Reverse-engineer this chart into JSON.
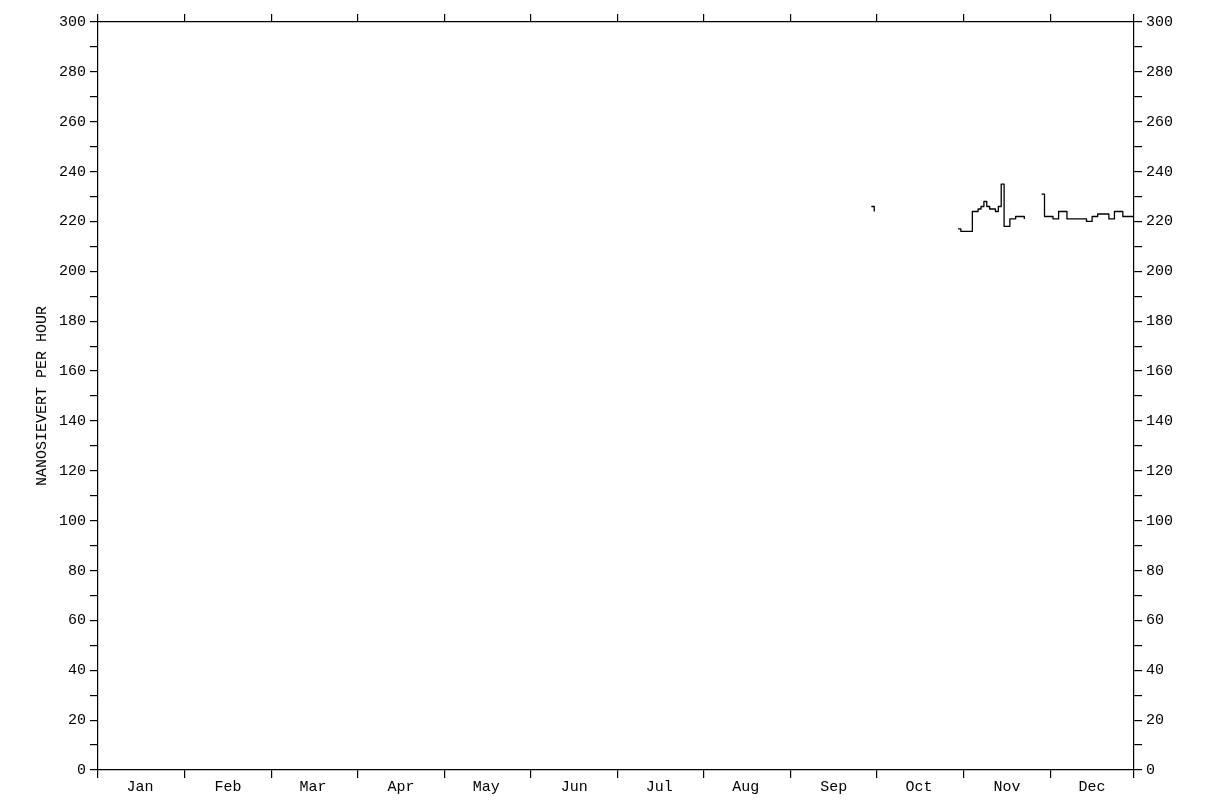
{
  "chart_data": {
    "type": "step",
    "ylabel": "NANOSIEVERT PER HOUR",
    "color": "#000000",
    "x": [
      "--09-29",
      "--09-30",
      "--10-15",
      "--10-30",
      "--10-31",
      "--11-04",
      "--11-06",
      "--11-07",
      "--11-08",
      "--11-09",
      "--11-10",
      "--11-12",
      "--11-13",
      "--11-14",
      "--11-15",
      "--11-17",
      "--11-19",
      "--11-22",
      "--11-25",
      "--11-28",
      "--11-29",
      "--12-02",
      "--12-04",
      "--12-07",
      "--12-10",
      "--12-14",
      "--12-16",
      "--12-18",
      "--12-22",
      "--12-24",
      "--12-27",
      "--12-31"
    ],
    "values": [
      226,
      224,
      null,
      217,
      216,
      224,
      225,
      226,
      228,
      226,
      225,
      224,
      226,
      235,
      218,
      221,
      222,
      221,
      null,
      231,
      222,
      221,
      224,
      221,
      221,
      220,
      222,
      223,
      221,
      224,
      222,
      221
    ],
    "xlim": [
      "--01-01",
      "--12-31"
    ],
    "xticks": [
      {
        "value": "--01-01",
        "label": null
      },
      {
        "value": "--01-16",
        "label": "Jan"
      },
      {
        "value": "--02-01",
        "label": null
      },
      {
        "value": "--02-15",
        "label": "Feb"
      },
      {
        "value": "--03-01",
        "label": null
      },
      {
        "value": "--03-16",
        "label": "Mar"
      },
      {
        "value": "--04-01",
        "label": null
      },
      {
        "value": "--04-16",
        "label": "Apr"
      },
      {
        "value": "--05-01",
        "label": null
      },
      {
        "value": "--05-16",
        "label": "May"
      },
      {
        "value": "--06-01",
        "label": null
      },
      {
        "value": "--06-16",
        "label": "Jun"
      },
      {
        "value": "--07-01",
        "label": null
      },
      {
        "value": "--07-16",
        "label": "Jul"
      },
      {
        "value": "--08-01",
        "label": null
      },
      {
        "value": "--08-16",
        "label": "Aug"
      },
      {
        "value": "--09-01",
        "label": null
      },
      {
        "value": "--09-16",
        "label": "Sep"
      },
      {
        "value": "--10-01",
        "label": null
      },
      {
        "value": "--10-16",
        "label": "Oct"
      },
      {
        "value": "--11-01",
        "label": null
      },
      {
        "value": "--11-16",
        "label": "Nov"
      },
      {
        "value": "--12-01",
        "label": null
      },
      {
        "value": "--12-16",
        "label": "Dec"
      },
      {
        "value": "--12-31",
        "label": null
      }
    ],
    "ylim": [
      0,
      300
    ],
    "yticks": [
      0,
      {
        "value": 10,
        "label": null
      },
      20,
      {
        "value": 30,
        "label": null
      },
      40,
      {
        "value": 50,
        "label": null
      },
      60,
      {
        "value": 70,
        "label": null
      },
      80,
      {
        "value": 90,
        "label": null
      },
      100,
      {
        "value": 110,
        "label": null
      },
      120,
      {
        "value": 130,
        "label": null
      },
      140,
      {
        "value": 150,
        "label": null
      },
      160,
      {
        "value": 170,
        "label": null
      },
      180,
      {
        "value": 190,
        "label": null
      },
      200,
      {
        "value": 210,
        "label": null
      },
      220,
      {
        "value": 230,
        "label": null
      },
      240,
      {
        "value": 250,
        "label": null
      },
      260,
      {
        "value": 270,
        "label": null
      },
      280,
      {
        "value": 290,
        "label": null
      },
      300
    ],
    "y2lim": [
      0,
      300
    ],
    "y2ticks": [
      0,
      {
        "value": 10,
        "label": null
      },
      20,
      {
        "value": 30,
        "label": null
      },
      40,
      {
        "value": 50,
        "label": null
      },
      60,
      {
        "value": 70,
        "label": null
      },
      80,
      {
        "value": 90,
        "label": null
      },
      100,
      {
        "value": 110,
        "label": null
      },
      120,
      {
        "value": 130,
        "label": null
      },
      140,
      {
        "value": 150,
        "label": null
      },
      160,
      {
        "value": 170,
        "label": null
      },
      180,
      {
        "value": 190,
        "label": null
      },
      200,
      {
        "value": 210,
        "label": null
      },
      220,
      {
        "value": 230,
        "label": null
      },
      240,
      {
        "value": 250,
        "label": null
      },
      260,
      {
        "value": 270,
        "label": null
      },
      280,
      {
        "value": 290,
        "label": null
      },
      300
    ]
  }
}
